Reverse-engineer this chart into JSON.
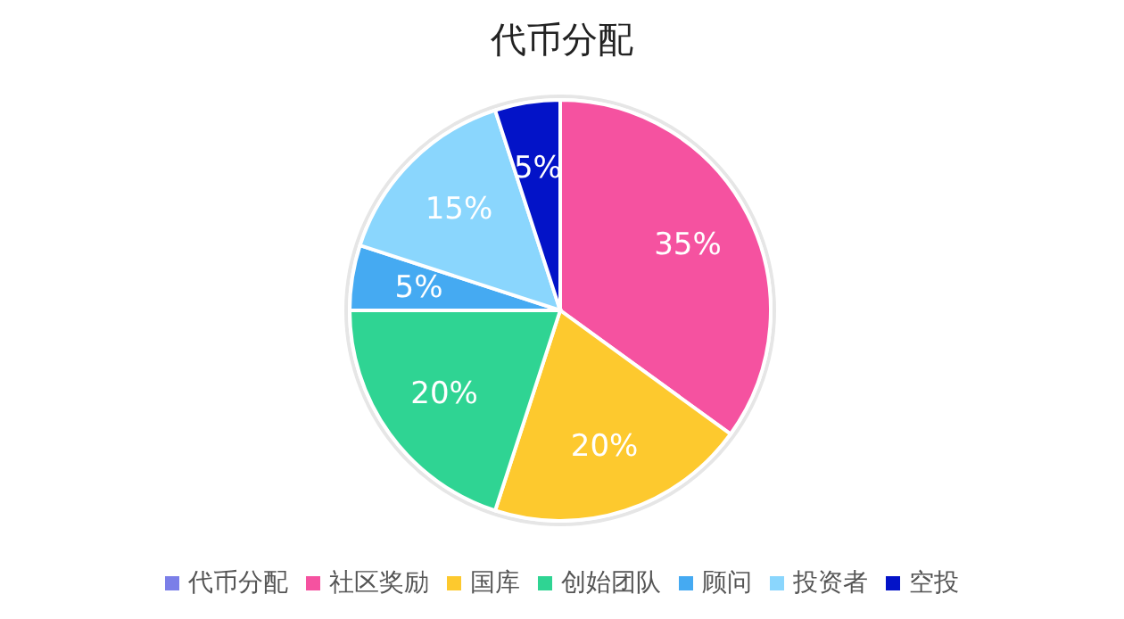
{
  "chart_data": {
    "type": "pie",
    "title": "代币分配",
    "legend_title": "代币分配",
    "legend": "bottom",
    "categories": [
      "社区奖励",
      "国库",
      "创始团队",
      "顾问",
      "投资者",
      "空投"
    ],
    "values": [
      35,
      20,
      20,
      5,
      15,
      5
    ],
    "colors": [
      "#f552a0",
      "#fdc92e",
      "#2fd493",
      "#45aaf2",
      "#8ad6fd",
      "#0313c8"
    ],
    "value_labels": [
      "35%",
      "20%",
      "20%",
      "5%",
      "15%",
      "5%"
    ]
  }
}
